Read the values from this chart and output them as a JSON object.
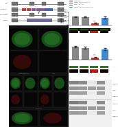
{
  "bg_color": "#ffffff",
  "left_bg": "#f0f0f0",
  "legend_labels": [
    "CaMKII^ctrl",
    "CaMKII^ctrl x Cre-Cre^fl/fl",
    "CaMKII^cre^fl/fl",
    "CaMKII^cre^fl/fl x Cre-Cre^fl/fl"
  ],
  "legend_colors": [
    "#222222",
    "#555555",
    "#cc3333",
    "#4488cc"
  ],
  "bar1_values": [
    1.0,
    0.96,
    0.22,
    0.88
  ],
  "bar1_errors": [
    0.04,
    0.06,
    0.03,
    0.09
  ],
  "bar1_colors": [
    "#888888",
    "#888888",
    "#cc3333",
    "#4488cc"
  ],
  "bar1_ylabel": "CaMKII-b",
  "bar2_values": [
    1.0,
    0.92,
    0.18,
    0.82
  ],
  "bar2_errors": [
    0.05,
    0.07,
    0.02,
    0.08
  ],
  "bar2_colors": [
    "#888888",
    "#888888",
    "#cc3333",
    "#4488cc"
  ],
  "bar2_ylabel": "CaMKII-a",
  "diag_row1_color": "#888888",
  "diag_row2_colors": [
    "#dd3333",
    "#dd3333",
    "#9955bb",
    "#9955bb",
    "#9955bb",
    "#4466cc",
    "#4466cc"
  ],
  "diag_row3_color": "#4466cc",
  "img_green": "#2a6a2a",
  "img_red": "#8a1a1a",
  "img_dark": "#080808",
  "wb_bg": "#e8e8e8",
  "wb_dark_band": "#444444",
  "wb_light_band": "#bbbbbb",
  "wb_absent": "#d8d8d8"
}
